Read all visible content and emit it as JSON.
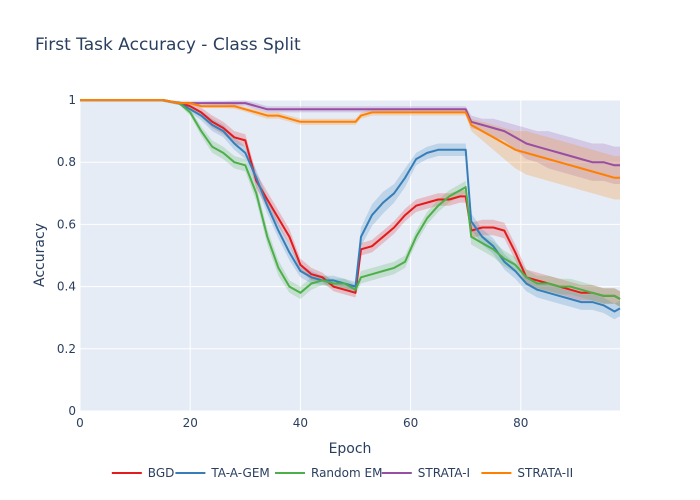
{
  "chart_data": {
    "type": "line",
    "title": "First Task Accuracy - Class Split",
    "xlabel": "Epoch",
    "ylabel": "Accuracy",
    "xlim": [
      0,
      98
    ],
    "ylim": [
      0,
      1
    ],
    "xticks": [
      0,
      20,
      40,
      60,
      80
    ],
    "yticks": [
      0,
      0.2,
      0.4,
      0.6,
      0.8,
      1
    ],
    "ytick_labels": [
      "0",
      "0.2",
      "0.4",
      "0.6",
      "0.8",
      "1"
    ],
    "grid": true,
    "legend_position": "bottom",
    "x": [
      0,
      5,
      10,
      15,
      18,
      20,
      22,
      24,
      26,
      28,
      30,
      32,
      34,
      36,
      38,
      40,
      42,
      44,
      46,
      48,
      50,
      51,
      53,
      55,
      57,
      59,
      61,
      63,
      65,
      67,
      69,
      70,
      71,
      73,
      75,
      77,
      79,
      81,
      83,
      85,
      87,
      89,
      91,
      93,
      95,
      97,
      98
    ],
    "series": [
      {
        "name": "BGD",
        "color": "#e41a1c",
        "values": [
          1.0,
          1.0,
          1.0,
          1.0,
          0.99,
          0.98,
          0.96,
          0.93,
          0.91,
          0.88,
          0.87,
          0.74,
          0.68,
          0.62,
          0.56,
          0.47,
          0.44,
          0.43,
          0.4,
          0.39,
          0.38,
          0.52,
          0.53,
          0.56,
          0.59,
          0.63,
          0.66,
          0.67,
          0.68,
          0.68,
          0.69,
          0.69,
          0.58,
          0.59,
          0.59,
          0.58,
          0.51,
          0.43,
          0.42,
          0.41,
          0.4,
          0.39,
          0.38,
          0.38,
          0.37,
          0.37,
          0.36
        ],
        "spread": [
          0.005,
          0.005,
          0.005,
          0.005,
          0.006,
          0.01,
          0.015,
          0.02,
          0.02,
          0.02,
          0.02,
          0.025,
          0.025,
          0.025,
          0.025,
          0.02,
          0.02,
          0.015,
          0.015,
          0.015,
          0.015,
          0.02,
          0.02,
          0.02,
          0.02,
          0.02,
          0.02,
          0.02,
          0.02,
          0.02,
          0.02,
          0.02,
          0.025,
          0.025,
          0.025,
          0.025,
          0.025,
          0.025,
          0.025,
          0.025,
          0.025,
          0.025,
          0.025,
          0.025,
          0.025,
          0.025,
          0.025
        ]
      },
      {
        "name": "TA-A-GEM",
        "color": "#377eb8",
        "values": [
          1.0,
          1.0,
          1.0,
          1.0,
          0.99,
          0.97,
          0.95,
          0.92,
          0.9,
          0.86,
          0.83,
          0.75,
          0.66,
          0.58,
          0.51,
          0.45,
          0.43,
          0.42,
          0.42,
          0.41,
          0.4,
          0.56,
          0.63,
          0.67,
          0.7,
          0.75,
          0.81,
          0.83,
          0.84,
          0.84,
          0.84,
          0.84,
          0.61,
          0.56,
          0.53,
          0.48,
          0.45,
          0.41,
          0.39,
          0.38,
          0.37,
          0.36,
          0.35,
          0.35,
          0.34,
          0.32,
          0.33
        ],
        "spread": [
          0.005,
          0.005,
          0.005,
          0.005,
          0.006,
          0.01,
          0.015,
          0.02,
          0.02,
          0.02,
          0.02,
          0.025,
          0.025,
          0.025,
          0.025,
          0.02,
          0.02,
          0.015,
          0.015,
          0.015,
          0.015,
          0.03,
          0.035,
          0.035,
          0.03,
          0.03,
          0.02,
          0.02,
          0.02,
          0.02,
          0.02,
          0.02,
          0.025,
          0.025,
          0.025,
          0.025,
          0.025,
          0.025,
          0.025,
          0.025,
          0.025,
          0.025,
          0.025,
          0.025,
          0.025,
          0.025,
          0.025
        ]
      },
      {
        "name": "Random EM",
        "color": "#4daf4a",
        "values": [
          1.0,
          1.0,
          1.0,
          1.0,
          0.99,
          0.96,
          0.9,
          0.85,
          0.83,
          0.8,
          0.79,
          0.7,
          0.56,
          0.46,
          0.4,
          0.38,
          0.41,
          0.42,
          0.41,
          0.41,
          0.39,
          0.43,
          0.44,
          0.45,
          0.46,
          0.48,
          0.56,
          0.62,
          0.66,
          0.69,
          0.71,
          0.72,
          0.56,
          0.54,
          0.52,
          0.49,
          0.47,
          0.43,
          0.41,
          0.41,
          0.4,
          0.4,
          0.39,
          0.38,
          0.37,
          0.37,
          0.36
        ],
        "spread": [
          0.005,
          0.005,
          0.005,
          0.005,
          0.006,
          0.01,
          0.015,
          0.02,
          0.02,
          0.02,
          0.02,
          0.025,
          0.025,
          0.025,
          0.02,
          0.02,
          0.02,
          0.015,
          0.015,
          0.015,
          0.015,
          0.02,
          0.02,
          0.02,
          0.02,
          0.02,
          0.02,
          0.02,
          0.02,
          0.02,
          0.02,
          0.02,
          0.025,
          0.025,
          0.025,
          0.025,
          0.025,
          0.025,
          0.025,
          0.025,
          0.025,
          0.025,
          0.025,
          0.025,
          0.025,
          0.025,
          0.025
        ]
      },
      {
        "name": "STRATA-I",
        "color": "#984ea3",
        "values": [
          1.0,
          1.0,
          1.0,
          1.0,
          0.99,
          0.99,
          0.99,
          0.99,
          0.99,
          0.99,
          0.99,
          0.98,
          0.97,
          0.97,
          0.97,
          0.97,
          0.97,
          0.97,
          0.97,
          0.97,
          0.97,
          0.97,
          0.97,
          0.97,
          0.97,
          0.97,
          0.97,
          0.97,
          0.97,
          0.97,
          0.97,
          0.97,
          0.93,
          0.92,
          0.91,
          0.9,
          0.88,
          0.86,
          0.85,
          0.84,
          0.83,
          0.82,
          0.81,
          0.8,
          0.8,
          0.79,
          0.79
        ],
        "spread": [
          0.003,
          0.003,
          0.003,
          0.003,
          0.004,
          0.005,
          0.005,
          0.006,
          0.006,
          0.008,
          0.008,
          0.01,
          0.01,
          0.01,
          0.01,
          0.01,
          0.01,
          0.01,
          0.01,
          0.01,
          0.01,
          0.01,
          0.01,
          0.01,
          0.01,
          0.01,
          0.01,
          0.01,
          0.01,
          0.01,
          0.01,
          0.01,
          0.02,
          0.02,
          0.03,
          0.03,
          0.04,
          0.05,
          0.05,
          0.06,
          0.06,
          0.06,
          0.06,
          0.06,
          0.06,
          0.06,
          0.06
        ]
      },
      {
        "name": "STRATA-II",
        "color": "#ff7f00",
        "values": [
          1.0,
          1.0,
          1.0,
          1.0,
          0.99,
          0.99,
          0.98,
          0.98,
          0.98,
          0.98,
          0.97,
          0.96,
          0.95,
          0.95,
          0.94,
          0.93,
          0.93,
          0.93,
          0.93,
          0.93,
          0.93,
          0.95,
          0.96,
          0.96,
          0.96,
          0.96,
          0.96,
          0.96,
          0.96,
          0.96,
          0.96,
          0.96,
          0.92,
          0.9,
          0.88,
          0.86,
          0.84,
          0.83,
          0.82,
          0.81,
          0.8,
          0.79,
          0.78,
          0.77,
          0.76,
          0.75,
          0.75
        ],
        "spread": [
          0.003,
          0.003,
          0.003,
          0.003,
          0.004,
          0.005,
          0.005,
          0.006,
          0.006,
          0.008,
          0.008,
          0.01,
          0.01,
          0.01,
          0.01,
          0.01,
          0.01,
          0.01,
          0.01,
          0.01,
          0.01,
          0.01,
          0.01,
          0.01,
          0.01,
          0.01,
          0.01,
          0.01,
          0.01,
          0.01,
          0.01,
          0.01,
          0.02,
          0.03,
          0.04,
          0.05,
          0.06,
          0.07,
          0.07,
          0.07,
          0.07,
          0.07,
          0.07,
          0.07,
          0.07,
          0.07,
          0.07
        ]
      }
    ]
  }
}
